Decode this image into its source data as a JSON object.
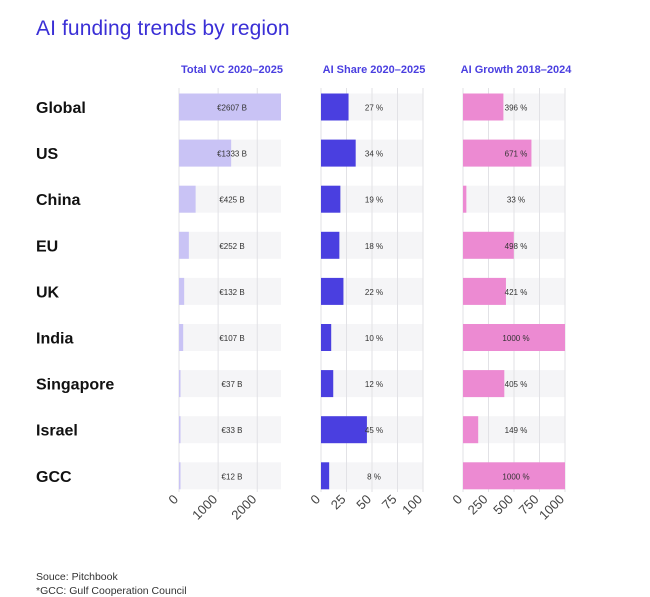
{
  "title": "AI funding trends by region",
  "footer": {
    "source": "Souce: Pitchbook",
    "note": "*GCC: Gulf Cooperation Council"
  },
  "colors": {
    "title": "#3a2fd6",
    "panel_title": "#4a3fe0",
    "vc_bar": "#c9c3f5",
    "share_bar": "#4a3fe0",
    "growth_bar": "#ec8ad2",
    "track": "#f5f5f7",
    "grid": "#e2e2e6"
  },
  "chart_data": {
    "type": "bar",
    "orientation": "horizontal",
    "categories": [
      "Global",
      "US",
      "China",
      "EU",
      "UK",
      "India",
      "Singapore",
      "Israel",
      "GCC"
    ],
    "panels": [
      {
        "key": "vc",
        "title": "Total VC 2020–2025",
        "values": [
          2607,
          1333,
          425,
          252,
          132,
          107,
          37,
          33,
          12
        ],
        "labels": [
          "€2607 B",
          "€1333 B",
          "€425 B",
          "€252 B",
          "€132 B",
          "€107 B",
          "€37 B",
          "€33 B",
          "€12 B"
        ],
        "xlim": [
          0,
          2607
        ],
        "ticks": [
          0,
          1000,
          2000
        ],
        "tick_labels": [
          "0",
          "1000",
          "2000"
        ]
      },
      {
        "key": "share",
        "title": "AI Share 2020–2025",
        "values": [
          27,
          34,
          19,
          18,
          22,
          10,
          12,
          45,
          8
        ],
        "labels": [
          "27 %",
          "34 %",
          "19 %",
          "18 %",
          "22 %",
          "10 %",
          "12 %",
          "45 %",
          "8 %"
        ],
        "xlim": [
          0,
          100
        ],
        "ticks": [
          0,
          25,
          50,
          75,
          100
        ],
        "tick_labels": [
          "0",
          "25",
          "50",
          "75",
          "100"
        ]
      },
      {
        "key": "growth",
        "title": "AI Growth 2018–2024",
        "values": [
          396,
          671,
          33,
          498,
          421,
          1000,
          405,
          149,
          1000
        ],
        "labels": [
          "396 %",
          "671 %",
          "33 %",
          "498 %",
          "421 %",
          "1000 %",
          "405 %",
          "149 %",
          "1000 %"
        ],
        "xlim": [
          0,
          1000
        ],
        "ticks": [
          0,
          250,
          500,
          750,
          1000
        ],
        "tick_labels": [
          "0",
          "250",
          "500",
          "750",
          "1000"
        ]
      }
    ]
  }
}
